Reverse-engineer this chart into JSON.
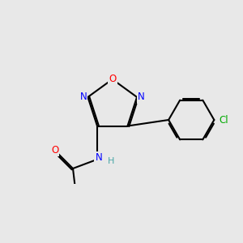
{
  "bg_color": "#e8e8e8",
  "bond_color": "#000000",
  "bond_width": 1.5,
  "font_size_atom": 8,
  "colors": {
    "N": "#0000ff",
    "O": "#ff0000",
    "Cl": "#00aa00",
    "C": "#000000",
    "H": "#4aa8a8"
  },
  "figsize": [
    3.0,
    3.0
  ],
  "dpi": 100
}
